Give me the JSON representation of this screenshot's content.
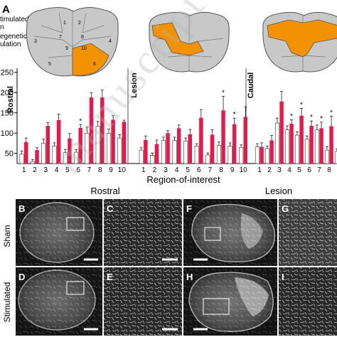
{
  "panel_letters": {
    "A": "A",
    "B": "B",
    "C": "C",
    "D": "D",
    "E": "E",
    "F": "F",
    "G": "G",
    "H": "H",
    "I": "I"
  },
  "legend": {
    "line1": "timulated",
    "line2": "n",
    "line3": "egenetic",
    "line4": "ulation"
  },
  "cord_regions": [
    "1",
    "2",
    "3",
    "7",
    "8",
    "4",
    "9",
    "10",
    "5",
    "6"
  ],
  "section_labels": {
    "rostral": "Rostral",
    "lesion": "Lesion",
    "caudal": "Caudal"
  },
  "xlabel": "Region-of-interest",
  "row_labels": {
    "sham": "Sham",
    "stimulated": "Stimulated"
  },
  "column_headers": {
    "rostral": "Rostral",
    "lesion": "Lesion"
  },
  "watermark": "manuscript",
  "colors": {
    "highlight": "#f39200",
    "stim_bar": "#e31a4c",
    "open_bar": "#ffffff",
    "cord_gray": "#c8c8c8"
  },
  "chart_data": {
    "type": "bar",
    "yticks": [
      "250",
      "200",
      "150",
      "100",
      "50"
    ],
    "ylim": [
      25,
      260
    ],
    "categories": [
      "1",
      "2",
      "3",
      "4",
      "5",
      "6",
      "7",
      "8",
      "9",
      "10"
    ],
    "groups": [
      {
        "name": "Rostral",
        "series": [
          {
            "values": [
              48,
              30,
              75,
              68,
              52,
              53,
              100,
              117,
              100,
              88
            ],
            "errors": [
              8,
              5,
              10,
              8,
              8,
              6,
              15,
              12,
              10,
              8
            ]
          },
          {
            "values": [
              78,
              58,
              118,
              132,
              87,
              113,
              188,
              188,
              133,
              128
            ],
            "errors": [
              10,
              6,
              8,
              15,
              12,
              8,
              12,
              18,
              10,
              4
            ]
          }
        ],
        "asterisks": [
          "6"
        ]
      },
      {
        "name": "Lesion",
        "series": [
          {
            "values": [
              58,
              45,
              82,
              82,
              80,
              68,
              46,
              70,
              68,
              65
            ],
            "errors": [
              6,
              6,
              8,
              8,
              8,
              6,
              5,
              8,
              8,
              6
            ]
          },
          {
            "values": [
              83,
              73,
              100,
              112,
              97,
              138,
              96,
              156,
              122,
              140
            ],
            "errors": [
              10,
              10,
              6,
              8,
              12,
              20,
              12,
              35,
              15,
              25
            ]
          }
        ],
        "asterisks": [
          "8",
          "9"
        ]
      },
      {
        "name": "Caudal",
        "series": [
          {
            "values": [
              66,
              62,
              125,
              108,
              95,
              85,
              108,
              58,
              55
            ],
            "errors": [
              8,
              6,
              12,
              10,
              8,
              8,
              12,
              8,
              6
            ]
          },
          {
            "values": [
              66,
              82,
              178,
              123,
              143,
              118,
              112,
              117,
              110
            ],
            "errors": [
              10,
              12,
              25,
              10,
              18,
              12,
              15,
              25,
              20
            ]
          }
        ],
        "visible_tick_labels": [
          "1",
          "2",
          "3",
          "4",
          "5",
          "6",
          "7",
          "8"
        ],
        "asterisks": [
          "4",
          "5",
          "6",
          "7",
          "8"
        ]
      }
    ]
  }
}
